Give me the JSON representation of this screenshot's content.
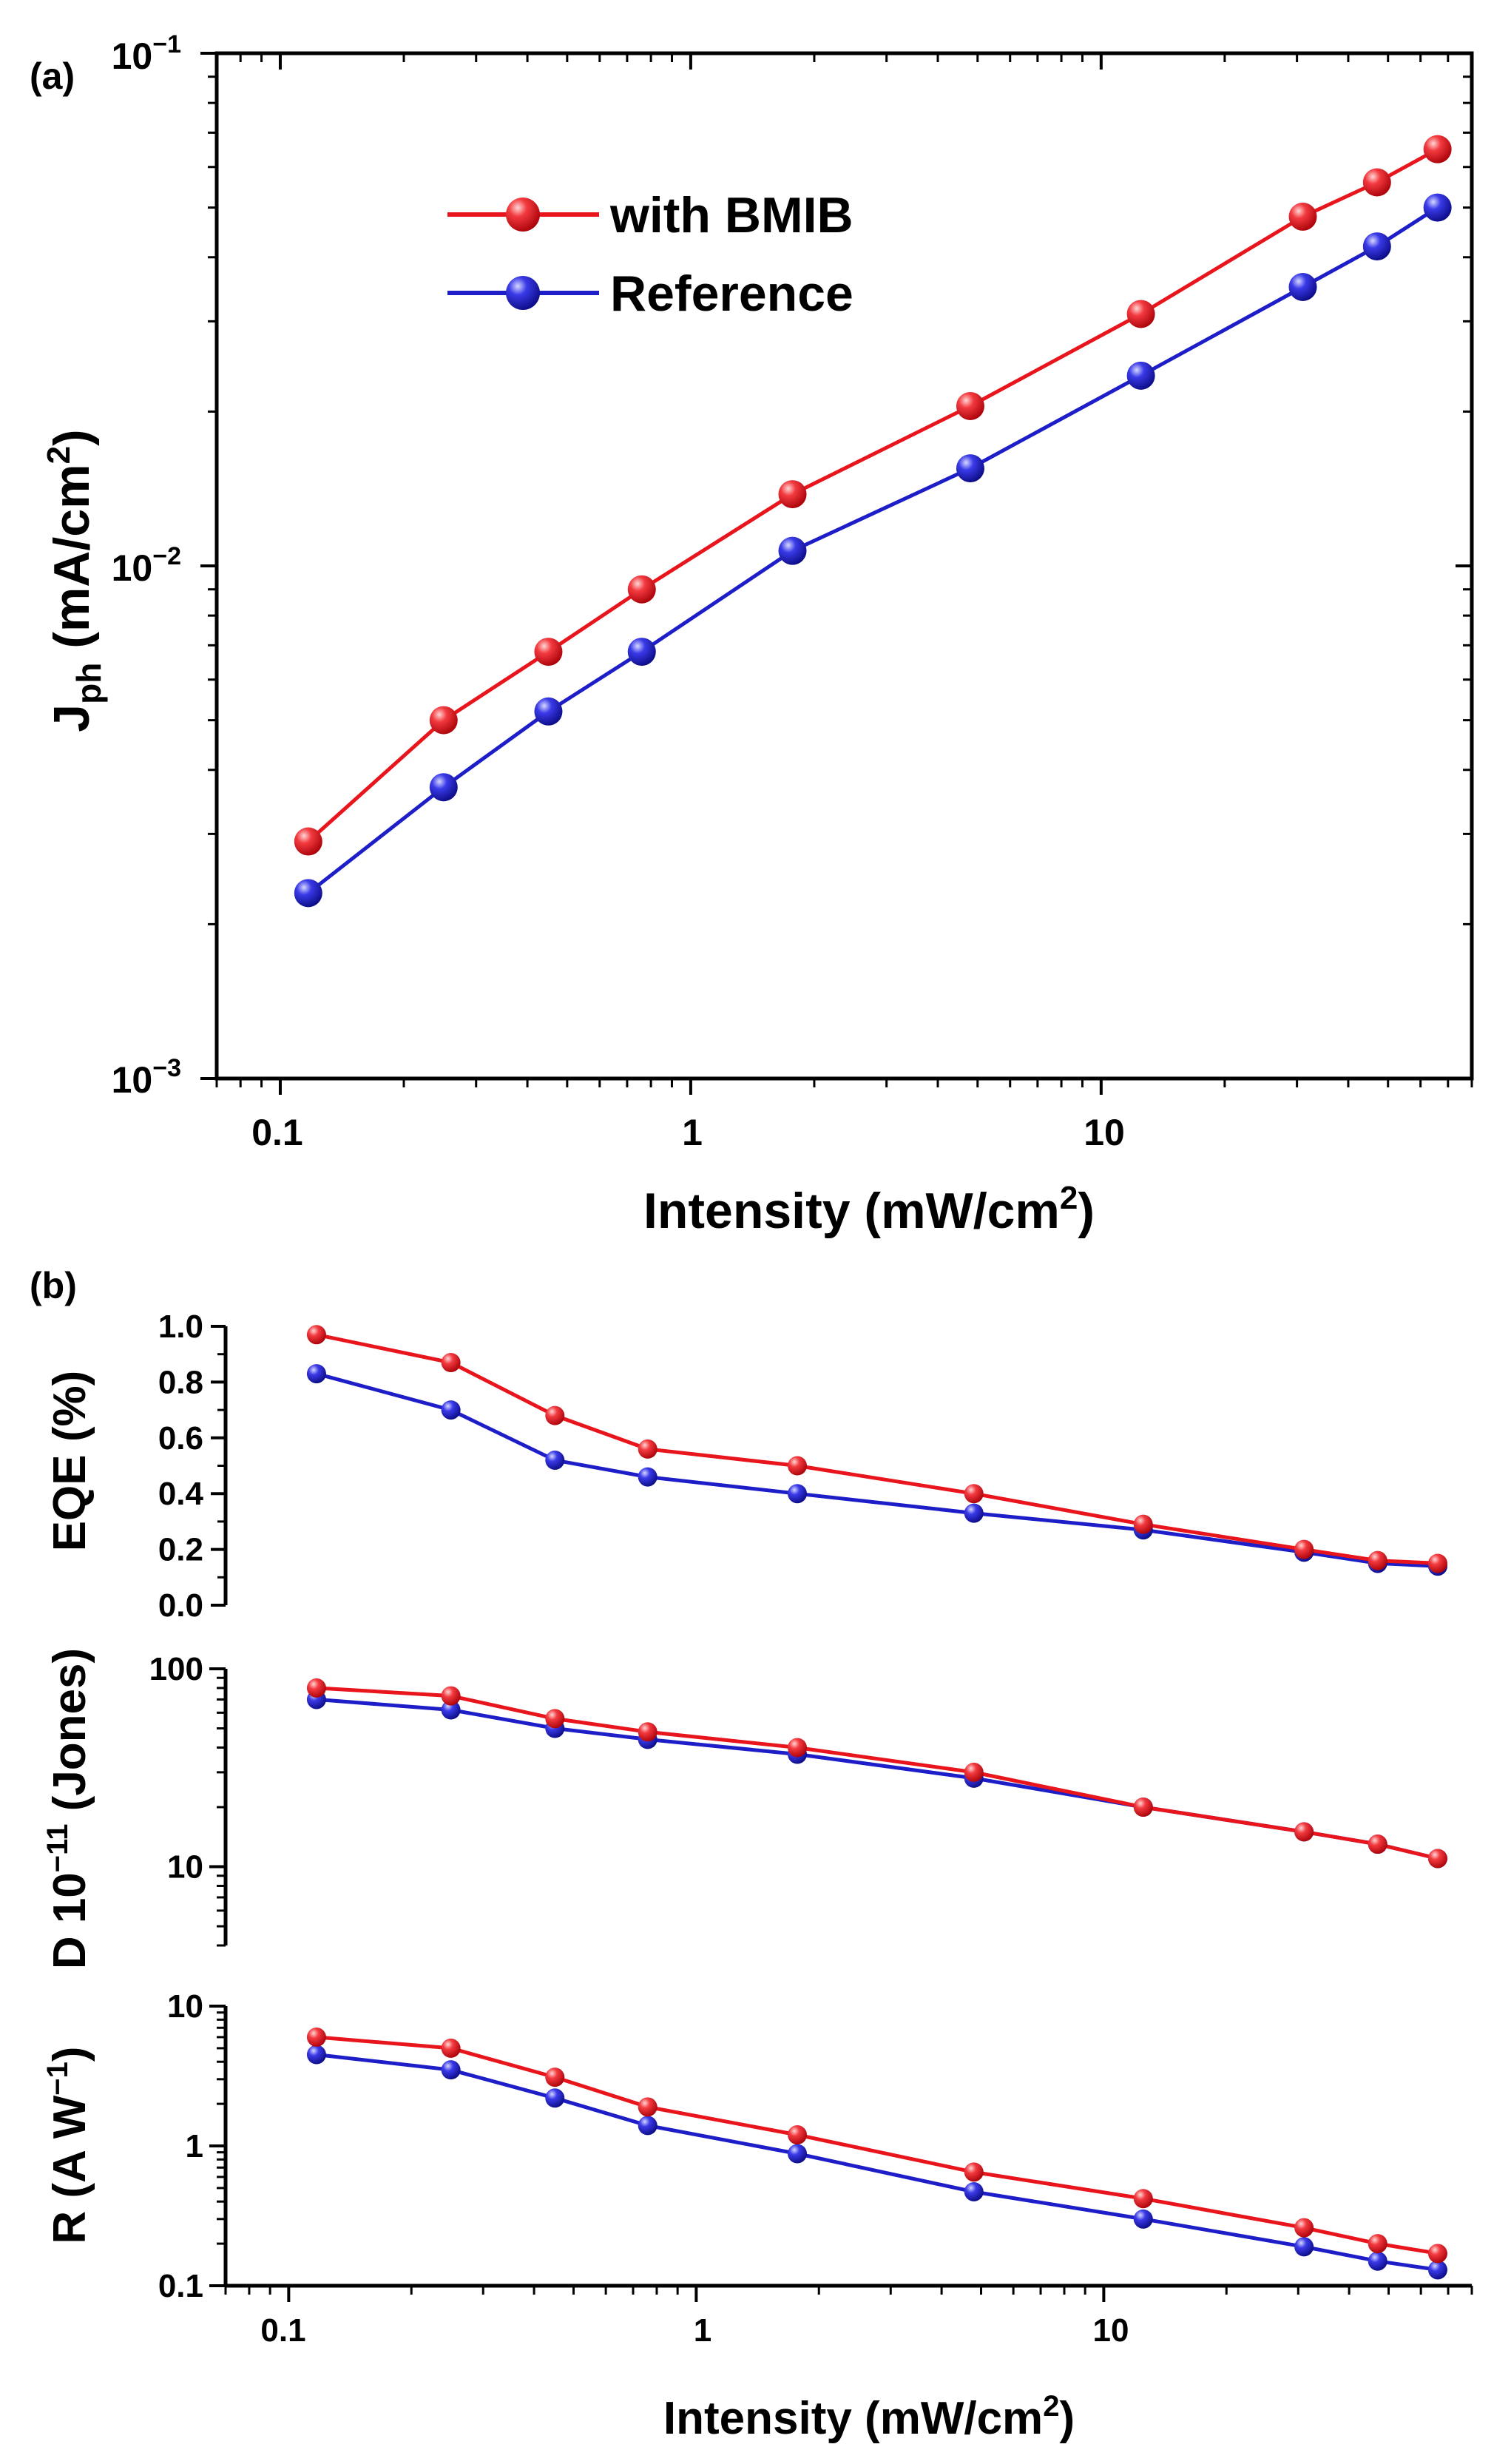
{
  "colors": {
    "with_bmib": "#e8151c",
    "reference": "#1e1ec8",
    "axis": "#000000"
  },
  "x_axis": {
    "title_prefix": "Intensity (mW/cm",
    "title_sup": "2",
    "title_suffix": ")",
    "range": [
      0.07,
      80
    ],
    "tick_labels": [
      "0.1",
      "1",
      "10"
    ]
  },
  "chart_data": [
    {
      "panel": "a",
      "panel_label": "(a)",
      "type": "line",
      "xscale": "log",
      "yscale": "log",
      "ylabel": {
        "main": "J",
        "sub": "ph",
        "unit_prefix": " (mA/cm",
        "sup": "2",
        "unit_suffix": ")"
      },
      "ylim": [
        0.001,
        0.1
      ],
      "ytick_labels": [
        {
          "value": 0.1,
          "base": "10",
          "exp": "−1"
        },
        {
          "value": 0.01,
          "base": "10",
          "exp": "−2"
        },
        {
          "value": 0.001,
          "base": "10",
          "exp": "−3"
        }
      ],
      "legend_position": "top-left",
      "x": [
        0.117,
        0.25,
        0.45,
        0.76,
        1.77,
        4.8,
        12.5,
        31,
        47,
        66
      ],
      "series": [
        {
          "name": "with BMIB",
          "color_key": "with_bmib",
          "values": [
            0.0029,
            0.005,
            0.0068,
            0.009,
            0.0138,
            0.0205,
            0.031,
            0.048,
            0.056,
            0.065
          ]
        },
        {
          "name": "Reference",
          "color_key": "reference",
          "values": [
            0.0023,
            0.0037,
            0.0052,
            0.0068,
            0.0107,
            0.0155,
            0.0235,
            0.035,
            0.042,
            0.05
          ]
        }
      ]
    },
    {
      "panel": "b-eqe",
      "panel_label": "(b)",
      "type": "line",
      "xscale": "log",
      "yscale": "linear",
      "ylabel": "EQE (%)",
      "ylim": [
        0.0,
        1.0
      ],
      "ytick_labels": [
        "0.0",
        "0.2",
        "0.4",
        "0.6",
        "0.8",
        "1.0"
      ],
      "ytick_values": [
        0.0,
        0.2,
        0.4,
        0.6,
        0.8,
        1.0
      ],
      "x": [
        0.117,
        0.25,
        0.45,
        0.76,
        1.77,
        4.8,
        12.5,
        31,
        47,
        66
      ],
      "series": [
        {
          "name": "with BMIB",
          "color_key": "with_bmib",
          "values": [
            0.97,
            0.87,
            0.68,
            0.56,
            0.5,
            0.4,
            0.29,
            0.2,
            0.16,
            0.15
          ]
        },
        {
          "name": "Reference",
          "color_key": "reference",
          "values": [
            0.83,
            0.7,
            0.52,
            0.46,
            0.4,
            0.33,
            0.27,
            0.19,
            0.15,
            0.14
          ]
        }
      ]
    },
    {
      "panel": "b-detectivity",
      "type": "line",
      "xscale": "log",
      "yscale": "log",
      "ylabel": {
        "prefix": "D 10",
        "sup": "−11",
        "suffix": " (Jones)"
      },
      "ylim": [
        4,
        100
      ],
      "ytick_labels": [
        "100",
        "10"
      ],
      "ytick_values": [
        100,
        10
      ],
      "x": [
        0.117,
        0.25,
        0.45,
        0.76,
        1.77,
        4.8,
        12.5,
        31,
        47,
        66
      ],
      "series": [
        {
          "name": "with BMIB",
          "color_key": "with_bmib",
          "values": [
            80,
            73,
            56,
            48,
            40,
            30,
            20,
            15,
            13,
            11
          ]
        },
        {
          "name": "Reference",
          "color_key": "reference",
          "values": [
            70,
            62,
            50,
            44,
            37,
            28,
            20,
            15,
            13,
            11
          ]
        }
      ]
    },
    {
      "panel": "b-responsivity",
      "type": "line",
      "xscale": "log",
      "yscale": "log",
      "ylabel": {
        "prefix": "R (A W",
        "sup": "−1",
        "suffix": ")"
      },
      "ylim": [
        0.1,
        10
      ],
      "ytick_labels": [
        "10",
        "1",
        "0.1"
      ],
      "ytick_values": [
        10,
        1,
        0.1
      ],
      "x": [
        0.117,
        0.25,
        0.45,
        0.76,
        1.77,
        4.8,
        12.5,
        31,
        47,
        66
      ],
      "series": [
        {
          "name": "with BMIB",
          "color_key": "with_bmib",
          "values": [
            6.0,
            5.0,
            3.1,
            1.9,
            1.2,
            0.65,
            0.42,
            0.26,
            0.2,
            0.17
          ]
        },
        {
          "name": "Reference",
          "color_key": "reference",
          "values": [
            4.5,
            3.5,
            2.2,
            1.4,
            0.88,
            0.47,
            0.3,
            0.19,
            0.15,
            0.13
          ]
        }
      ]
    }
  ]
}
